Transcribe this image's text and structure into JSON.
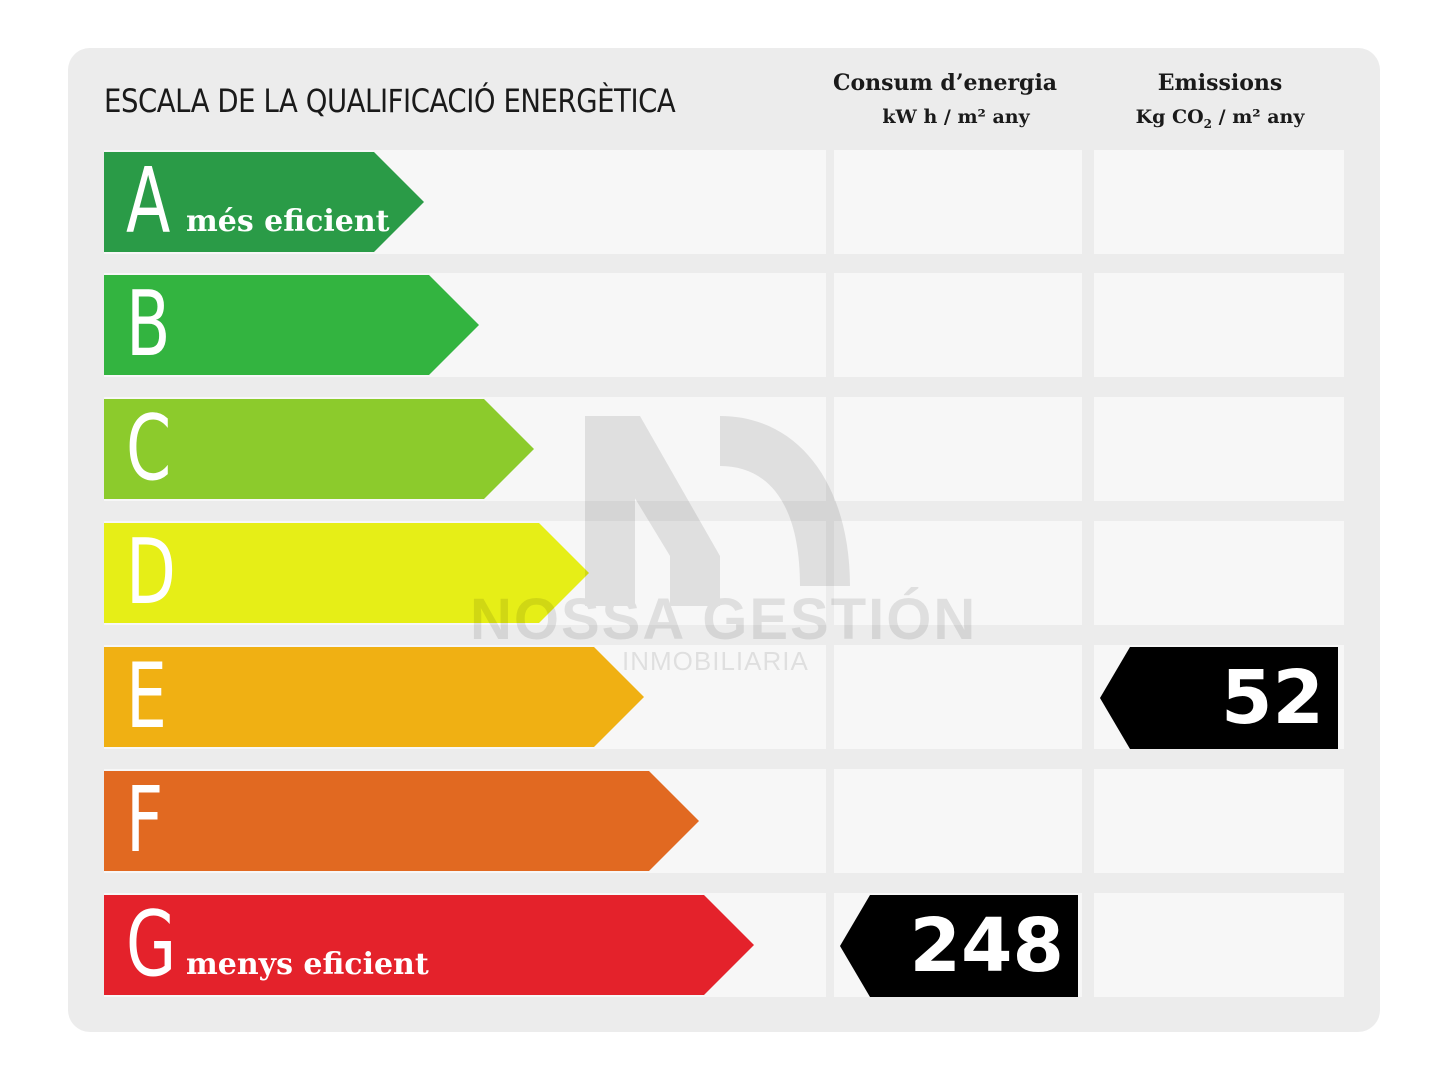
{
  "header": {
    "title": "ESCALA DE LA QUALIFICACIÓ ENERGÈTICA",
    "consumption": {
      "line1": "Consum d’energia",
      "line2": "kW h / m² any"
    },
    "emissions": {
      "line1": "Emissions",
      "line2_prefix": "Kg CO",
      "line2_sub": "2",
      "line2_suffix": " / m² any"
    }
  },
  "classes": [
    {
      "letter": "A",
      "label": "més eficient",
      "color": "#2a9b47"
    },
    {
      "letter": "B",
      "label": "",
      "color": "#33b440"
    },
    {
      "letter": "C",
      "label": "",
      "color": "#8ccb2c"
    },
    {
      "letter": "D",
      "label": "",
      "color": "#e6ee17"
    },
    {
      "letter": "E",
      "label": "",
      "color": "#f0b013"
    },
    {
      "letter": "F",
      "label": "",
      "color": "#e16921"
    },
    {
      "letter": "G",
      "label": "menys eficient",
      "color": "#e4222b"
    }
  ],
  "ratings": {
    "consumption": {
      "value": "248",
      "class": "G"
    },
    "emissions": {
      "value": "52",
      "class": "E"
    }
  },
  "watermark": {
    "brand": "NOSSA GESTIÓN",
    "tagline": "INMOBILIARIA"
  }
}
